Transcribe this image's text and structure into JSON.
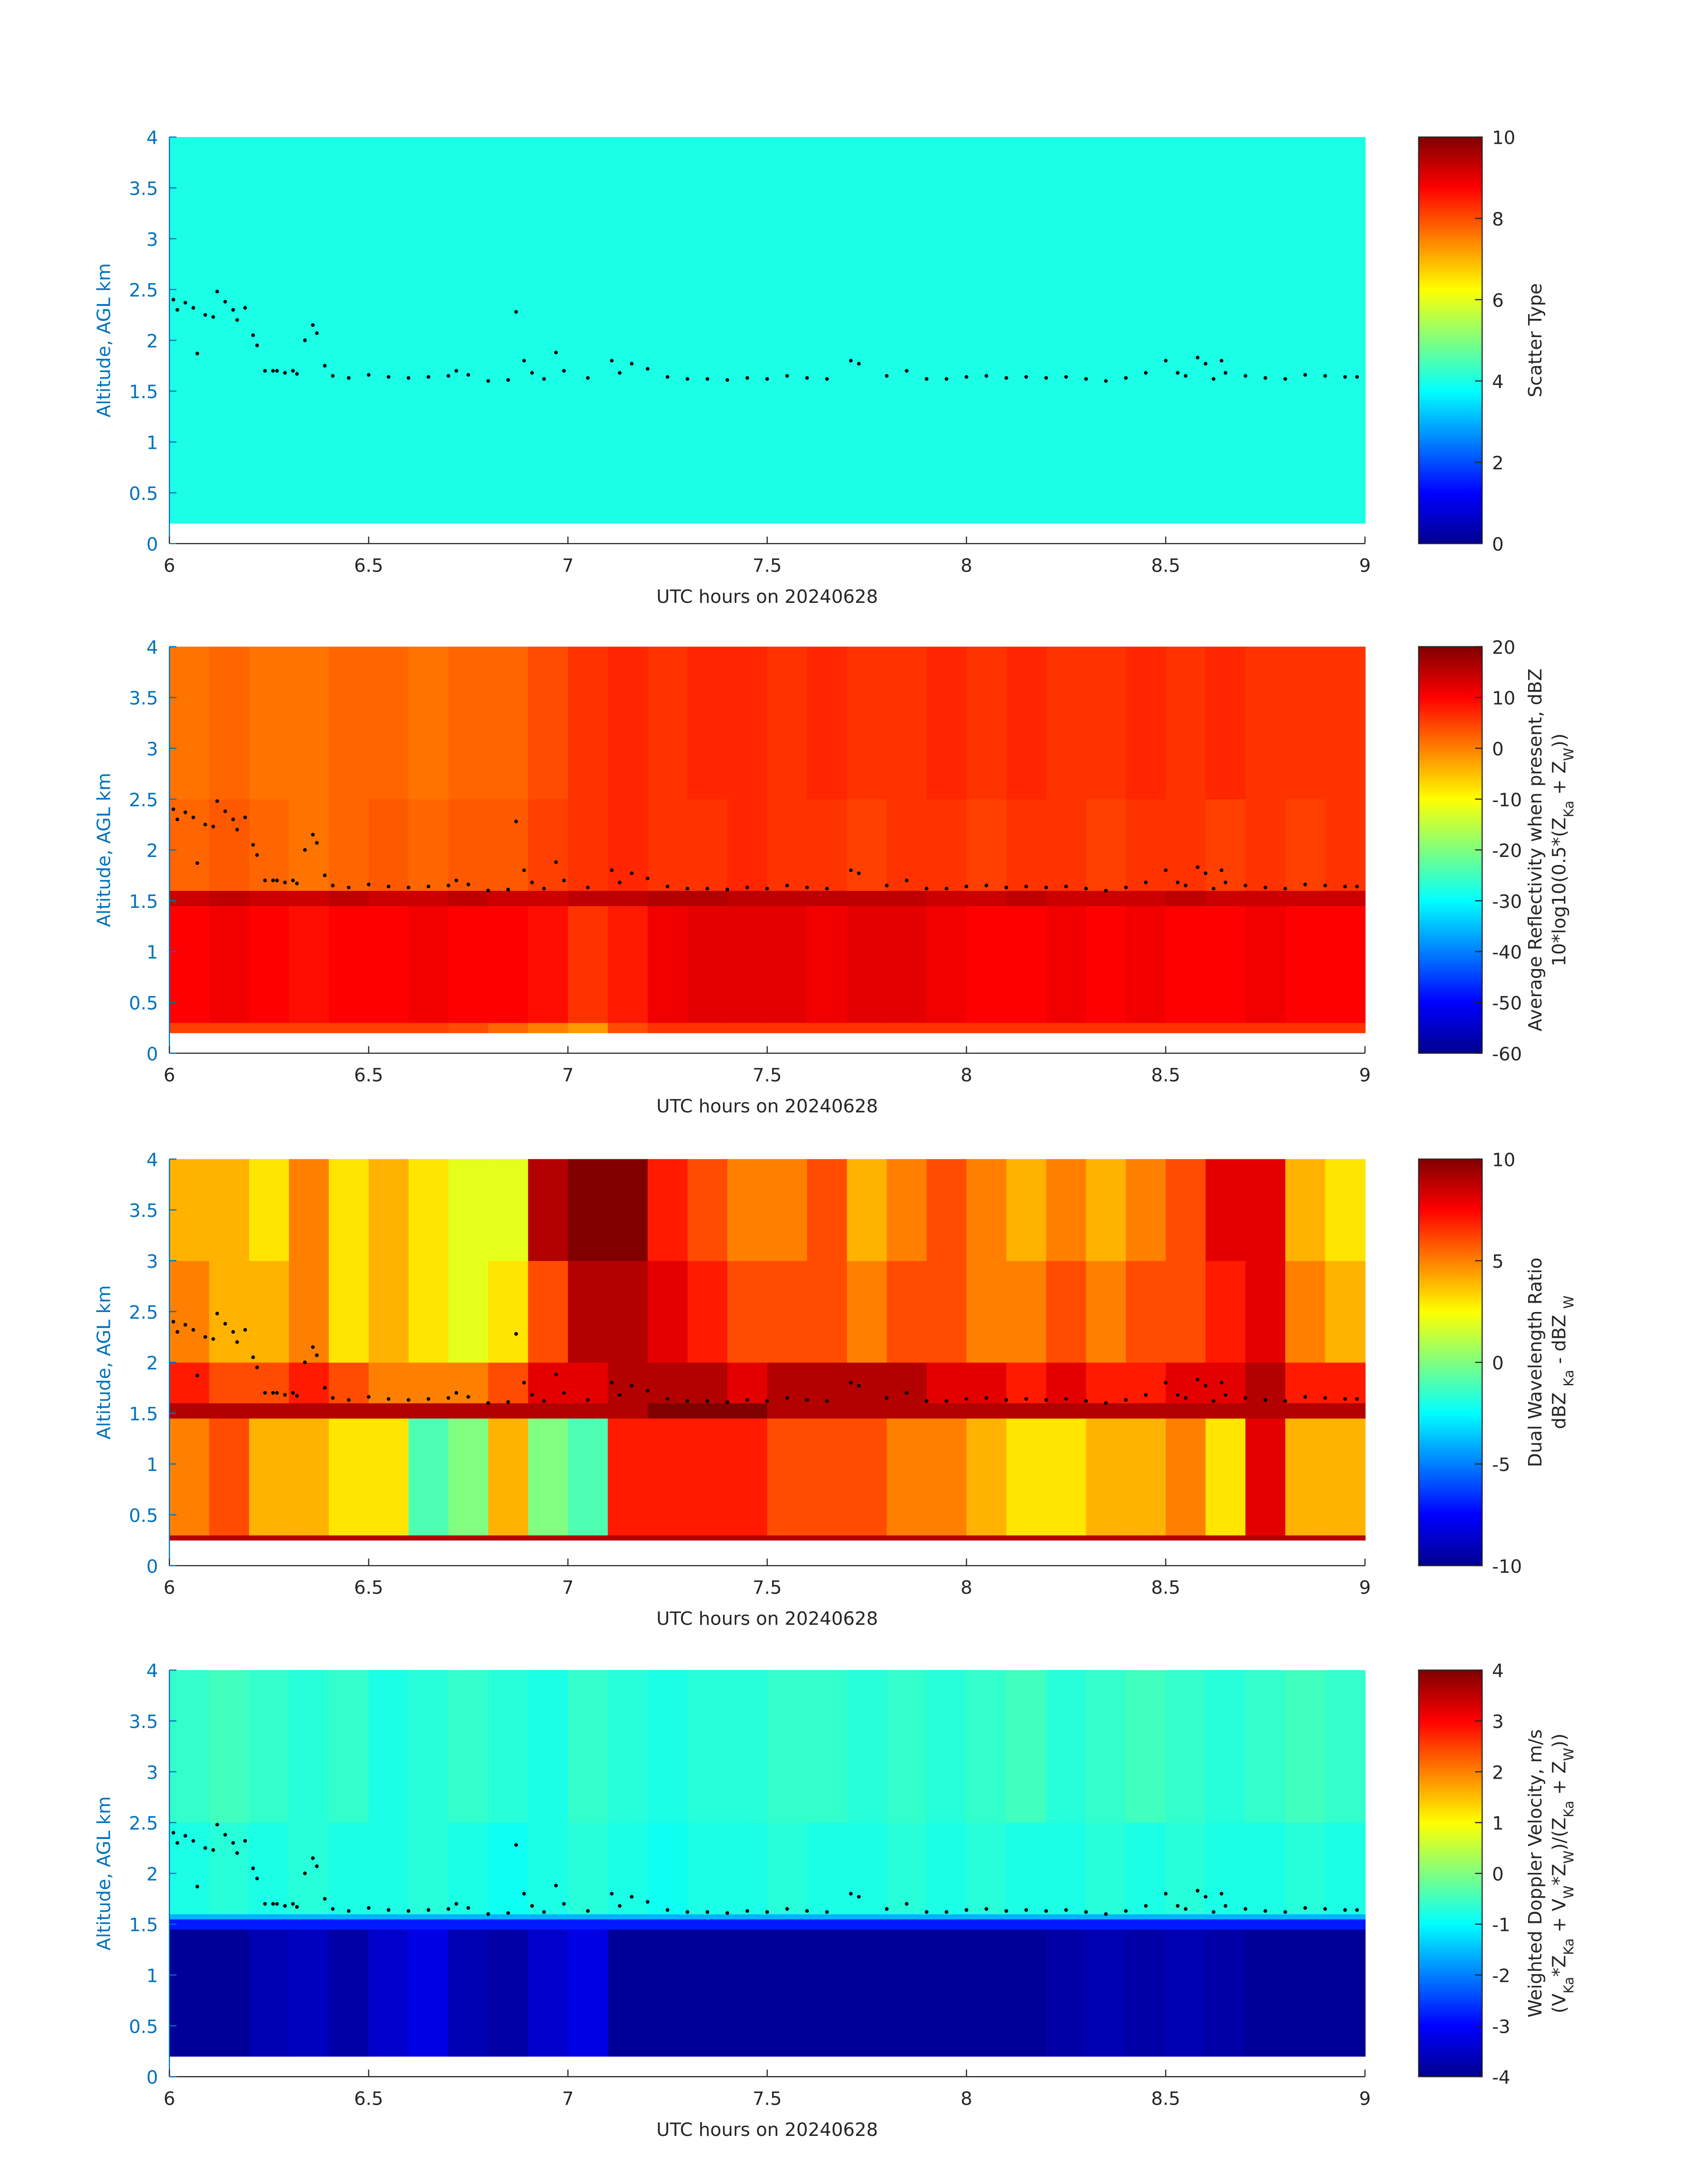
{
  "chart_data": [
    {
      "type": "heatmap",
      "colormap": "jet",
      "xlabel": "UTC hours on 20240628",
      "ylabel": "Altitude, AGL km",
      "xlim": [
        6,
        9
      ],
      "xticks": [
        6,
        6.5,
        7,
        7.5,
        8,
        8.5,
        9
      ],
      "ylim": [
        0,
        4
      ],
      "yticks": [
        0,
        0.5,
        1,
        1.5,
        2,
        2.5,
        3,
        3.5,
        4
      ],
      "clim": [
        0,
        10
      ],
      "cticks": [
        0,
        2,
        4,
        6,
        8,
        10
      ],
      "cbar_label": [
        [
          "Scatter Type"
        ]
      ],
      "x_edges": [
        6,
        9
      ],
      "y_edges": [
        0.2,
        4
      ],
      "z": [
        [
          4
        ]
      ]
    },
    {
      "type": "heatmap",
      "colormap": "jet",
      "xlabel": "UTC hours on 20240628",
      "ylabel": "Altitude, AGL km",
      "xlim": [
        6,
        9
      ],
      "xticks": [
        6,
        6.5,
        7,
        7.5,
        8,
        8.5,
        9
      ],
      "ylim": [
        0,
        4
      ],
      "yticks": [
        0,
        0.5,
        1,
        1.5,
        2,
        2.5,
        3,
        3.5,
        4
      ],
      "clim": [
        -60,
        20
      ],
      "cticks": [
        -60,
        -50,
        -40,
        -30,
        -20,
        -10,
        0,
        10,
        20
      ],
      "cbar_label": [
        [
          "Average Reflectivity when present, dBZ"
        ],
        [
          "10*log10(0.5*(Z",
          "Ka",
          " + Z",
          "W",
          "))"
        ]
      ],
      "x_edges": [
        6,
        6.1,
        6.2,
        6.3,
        6.4,
        6.5,
        6.6,
        6.7,
        6.8,
        6.9,
        7,
        7.1,
        7.2,
        7.3,
        7.4,
        7.5,
        7.6,
        7.7,
        7.8,
        7.9,
        8,
        8.1,
        8.2,
        8.3,
        8.4,
        8.5,
        8.6,
        8.7,
        8.8,
        8.9,
        9
      ],
      "y_edges": [
        0.2,
        0.3,
        1.45,
        1.6,
        2.5,
        4
      ],
      "z": [
        [
          5,
          5,
          5,
          5,
          5,
          5,
          5,
          4,
          2,
          0,
          -2,
          4,
          6,
          6,
          6,
          6,
          6,
          6,
          6,
          6,
          6,
          6,
          6,
          6,
          6,
          6,
          6,
          6,
          6,
          6
        ],
        [
          10,
          11,
          10,
          9,
          10,
          10,
          11,
          10,
          10,
          9,
          6,
          8,
          11,
          12,
          12,
          12,
          11,
          12,
          12,
          11,
          10,
          10,
          11,
          10,
          11,
          10,
          10,
          11,
          10,
          10
        ],
        [
          14,
          15,
          14,
          14,
          15,
          14,
          14,
          15,
          14,
          14,
          15,
          15,
          16,
          16,
          15,
          15,
          15,
          15,
          15,
          14,
          14,
          15,
          14,
          14,
          14,
          15,
          14,
          14,
          14,
          14
        ],
        [
          2,
          3,
          2,
          1,
          2,
          3,
          2,
          3,
          3,
          5,
          6,
          7,
          6,
          6,
          7,
          6,
          6,
          5,
          6,
          6,
          5,
          6,
          6,
          5,
          6,
          6,
          5,
          6,
          5,
          6
        ],
        [
          1,
          2,
          1,
          1,
          2,
          2,
          1,
          2,
          2,
          4,
          6,
          7,
          6,
          7,
          7,
          6,
          7,
          6,
          6,
          7,
          6,
          7,
          6,
          6,
          7,
          6,
          7,
          6,
          6,
          6
        ]
      ]
    },
    {
      "type": "heatmap",
      "colormap": "jet",
      "xlabel": "UTC hours on 20240628",
      "ylabel": "Altitude, AGL km",
      "xlim": [
        6,
        9
      ],
      "xticks": [
        6,
        6.5,
        7,
        7.5,
        8,
        8.5,
        9
      ],
      "ylim": [
        0,
        4
      ],
      "yticks": [
        0,
        0.5,
        1,
        1.5,
        2,
        2.5,
        3,
        3.5,
        4
      ],
      "clim": [
        -10,
        10
      ],
      "cticks": [
        -10,
        -5,
        0,
        5,
        10
      ],
      "cbar_label": [
        [
          "Dual Wavelength Ratio"
        ],
        [
          "dBZ ",
          "Ka",
          " - dBZ ",
          "W"
        ]
      ],
      "x_edges": [
        6,
        6.1,
        6.2,
        6.3,
        6.4,
        6.5,
        6.6,
        6.7,
        6.8,
        6.9,
        7,
        7.1,
        7.2,
        7.3,
        7.4,
        7.5,
        7.6,
        7.7,
        7.8,
        7.9,
        8,
        8.1,
        8.2,
        8.3,
        8.4,
        8.5,
        8.6,
        8.7,
        8.8,
        8.9,
        9
      ],
      "y_edges": [
        0.25,
        0.3,
        1.45,
        1.6,
        2,
        3,
        4
      ],
      "z": [
        [
          9,
          9,
          9,
          9,
          9,
          9,
          9,
          9,
          9,
          9,
          9,
          9,
          9,
          9,
          9,
          9,
          9,
          9,
          9,
          9,
          9,
          9,
          9,
          9,
          9,
          9,
          9,
          9,
          9,
          9
        ],
        [
          5,
          6,
          4,
          4,
          3,
          3,
          -1,
          0,
          4,
          0,
          -1,
          7,
          7,
          7,
          7,
          6,
          6,
          6,
          5,
          5,
          4,
          3,
          3,
          4,
          4,
          5,
          3,
          8,
          4,
          4
        ],
        [
          9,
          9,
          9,
          9,
          9,
          9,
          9,
          9,
          9,
          9,
          9,
          9,
          10,
          10,
          10,
          9,
          9,
          9,
          9,
          9,
          9,
          9,
          9,
          9,
          9,
          9,
          9,
          9,
          9,
          9
        ],
        [
          7,
          6,
          6,
          7,
          6,
          5,
          5,
          5,
          6,
          8,
          8,
          9,
          9,
          9,
          8,
          9,
          9,
          9,
          9,
          8,
          8,
          7,
          8,
          7,
          7,
          8,
          8,
          9,
          7,
          7
        ],
        [
          5,
          4,
          4,
          5,
          3,
          4,
          3,
          2,
          3,
          6,
          9,
          9,
          8,
          7,
          6,
          6,
          6,
          5,
          6,
          6,
          5,
          5,
          6,
          5,
          6,
          6,
          7,
          8,
          5,
          4
        ],
        [
          4,
          4,
          3,
          5,
          3,
          4,
          3,
          2,
          2,
          9,
          10,
          10,
          7,
          6,
          5,
          5,
          6,
          4,
          5,
          6,
          5,
          4,
          5,
          4,
          5,
          6,
          8,
          8,
          4,
          3
        ]
      ]
    },
    {
      "type": "heatmap",
      "colormap": "jet",
      "xlabel": "UTC hours on 20240628",
      "ylabel": "Altitude, AGL km",
      "xlim": [
        6,
        9
      ],
      "xticks": [
        6,
        6.5,
        7,
        7.5,
        8,
        8.5,
        9
      ],
      "ylim": [
        0,
        4
      ],
      "yticks": [
        0,
        0.5,
        1,
        1.5,
        2,
        2.5,
        3,
        3.5,
        4
      ],
      "clim": [
        -4,
        4
      ],
      "cticks": [
        -4,
        -3,
        -2,
        -1,
        0,
        1,
        2,
        3,
        4
      ],
      "cbar_label": [
        [
          "Weighted Doppler Velocity, m/s"
        ],
        [
          "(V",
          "Ka",
          "*Z",
          "Ka",
          " + V",
          "W",
          "*Z",
          "W",
          ")/(Z",
          "Ka",
          " + Z",
          "W",
          "))"
        ]
      ],
      "x_edges": [
        6,
        6.1,
        6.2,
        6.3,
        6.4,
        6.5,
        6.6,
        6.7,
        6.8,
        6.9,
        7,
        7.1,
        7.2,
        7.3,
        7.4,
        7.5,
        7.6,
        7.7,
        7.8,
        7.9,
        8,
        8.1,
        8.2,
        8.3,
        8.4,
        8.5,
        8.6,
        8.7,
        8.8,
        8.9,
        9
      ],
      "y_edges": [
        0.2,
        1.45,
        1.55,
        1.6,
        2.5,
        4
      ],
      "z": [
        [
          -3.8,
          -3.8,
          -3.6,
          -3.5,
          -3.7,
          -3.4,
          -3.2,
          -3.6,
          -3.7,
          -3.4,
          -3.2,
          -3.8,
          -3.8,
          -3.8,
          -3.8,
          -3.8,
          -3.8,
          -3.8,
          -3.8,
          -3.8,
          -3.8,
          -3.8,
          -3.7,
          -3.6,
          -3.7,
          -3.6,
          -3.7,
          -3.8,
          -3.8,
          -3.8
        ],
        [
          -2.8,
          -2.8,
          -2.8,
          -2.8,
          -2.8,
          -2.8,
          -2.8,
          -2.8,
          -2.8,
          -2.8,
          -2.8,
          -2.8,
          -2.8,
          -2.8,
          -2.8,
          -2.8,
          -2.8,
          -2.8,
          -2.8,
          -2.8,
          -2.8,
          -2.8,
          -2.8,
          -2.8,
          -2.8,
          -2.8,
          -2.8,
          -2.8,
          -2.8,
          -2.8
        ],
        [
          -1.6,
          -1.6,
          -1.6,
          -1.6,
          -1.6,
          -1.6,
          -1.6,
          -1.6,
          -1.6,
          -1.6,
          -1.6,
          -1.6,
          -1.6,
          -1.6,
          -1.6,
          -1.6,
          -1.6,
          -1.6,
          -1.6,
          -1.6,
          -1.6,
          -1.6,
          -1.6,
          -1.6,
          -1.6,
          -1.6,
          -1.6,
          -1.6,
          -1.6,
          -1.6
        ],
        [
          -0.8,
          -0.7,
          -0.8,
          -0.7,
          -0.8,
          -0.8,
          -0.7,
          -0.8,
          -0.9,
          -0.8,
          -0.7,
          -0.8,
          -0.9,
          -0.8,
          -0.8,
          -0.7,
          -0.8,
          -0.8,
          -0.7,
          -0.8,
          -0.7,
          -0.8,
          -0.8,
          -0.7,
          -0.8,
          -0.7,
          -0.8,
          -0.8,
          -0.7,
          -0.8
        ],
        [
          -0.6,
          -0.5,
          -0.6,
          -0.7,
          -0.6,
          -0.8,
          -0.7,
          -0.6,
          -0.7,
          -0.8,
          -0.6,
          -0.7,
          -0.8,
          -0.7,
          -0.7,
          -0.6,
          -0.6,
          -0.7,
          -0.6,
          -0.7,
          -0.6,
          -0.5,
          -0.7,
          -0.6,
          -0.5,
          -0.6,
          -0.7,
          -0.6,
          -0.5,
          -0.6
        ]
      ]
    }
  ],
  "cloud_base": {
    "color": "#000000",
    "x": [
      6.01,
      6.02,
      6.04,
      6.06,
      6.07,
      6.09,
      6.11,
      6.12,
      6.14,
      6.16,
      6.17,
      6.19,
      6.21,
      6.22,
      6.24,
      6.26,
      6.27,
      6.29,
      6.31,
      6.32,
      6.34,
      6.36,
      6.37,
      6.39,
      6.41,
      6.45,
      6.5,
      6.55,
      6.6,
      6.65,
      6.7,
      6.72,
      6.75,
      6.8,
      6.85,
      6.87,
      6.89,
      6.91,
      6.94,
      6.97,
      6.99,
      7.05,
      7.11,
      7.13,
      7.16,
      7.2,
      7.25,
      7.3,
      7.35,
      7.4,
      7.45,
      7.5,
      7.55,
      7.6,
      7.65,
      7.71,
      7.73,
      7.8,
      7.85,
      7.9,
      7.95,
      8,
      8.05,
      8.1,
      8.15,
      8.2,
      8.25,
      8.3,
      8.35,
      8.4,
      8.45,
      8.5,
      8.53,
      8.55,
      8.58,
      8.6,
      8.62,
      8.64,
      8.65,
      8.7,
      8.75,
      8.8,
      8.85,
      8.9,
      8.95,
      8.98
    ],
    "values": [
      2.4,
      2.3,
      2.37,
      2.32,
      1.87,
      2.25,
      2.23,
      2.48,
      2.38,
      2.3,
      2.2,
      2.32,
      2.05,
      1.95,
      1.7,
      1.7,
      1.7,
      1.68,
      1.7,
      1.67,
      2,
      2.15,
      2.07,
      1.75,
      1.65,
      1.63,
      1.66,
      1.64,
      1.63,
      1.64,
      1.65,
      1.7,
      1.66,
      1.6,
      1.61,
      2.28,
      1.8,
      1.68,
      1.62,
      1.88,
      1.7,
      1.63,
      1.8,
      1.68,
      1.77,
      1.72,
      1.64,
      1.62,
      1.62,
      1.61,
      1.63,
      1.62,
      1.65,
      1.63,
      1.62,
      1.8,
      1.77,
      1.65,
      1.7,
      1.62,
      1.62,
      1.64,
      1.65,
      1.63,
      1.64,
      1.63,
      1.64,
      1.62,
      1.6,
      1.63,
      1.68,
      1.8,
      1.68,
      1.65,
      1.83,
      1.77,
      1.62,
      1.8,
      1.68,
      1.65,
      1.63,
      1.62,
      1.66,
      1.65,
      1.64,
      1.64
    ]
  }
}
